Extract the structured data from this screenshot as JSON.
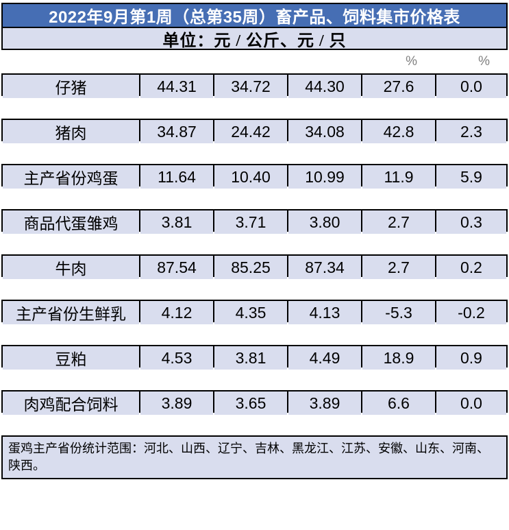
{
  "chart_data": {
    "type": "table",
    "title": "2022年9月第1周（总第35周）畜产品、饲料集市价格表",
    "unit_line": "单位：元 / 公斤、元 / 只",
    "column_headers": [
      "",
      "",
      "",
      "",
      "%",
      "%"
    ],
    "rows": [
      {
        "name": "仔猪",
        "values": [
          "44.31",
          "34.72",
          "44.30",
          "27.6",
          "0.0"
        ]
      },
      {
        "name": "猪肉",
        "values": [
          "34.87",
          "24.42",
          "34.08",
          "42.8",
          "2.3"
        ]
      },
      {
        "name": "主产省份鸡蛋",
        "values": [
          "11.64",
          "10.40",
          "10.99",
          "11.9",
          "5.9"
        ]
      },
      {
        "name": "商品代蛋雏鸡",
        "values": [
          "3.81",
          "3.71",
          "3.80",
          "2.7",
          "0.3"
        ]
      },
      {
        "name": "牛肉",
        "values": [
          "87.54",
          "85.25",
          "87.34",
          "2.7",
          "0.2"
        ]
      },
      {
        "name": "主产省份生鲜乳",
        "values": [
          "4.12",
          "4.35",
          "4.13",
          "-5.3",
          "-0.2"
        ]
      },
      {
        "name": "豆粕",
        "values": [
          "4.53",
          "3.81",
          "4.49",
          "18.9",
          "0.9"
        ]
      },
      {
        "name": "肉鸡配合饲料",
        "values": [
          "3.89",
          "3.65",
          "3.89",
          "6.6",
          "0.0"
        ]
      }
    ],
    "footnote": "蛋鸡主产省份统计范围：河北、山西、辽宁、吉林、黑龙江、江苏、安徽、山东、河南、陕西。"
  },
  "colors": {
    "title_bg": "#466eb4",
    "title_text": "#ffffff",
    "cell_bg": "#d9ddee",
    "pct_text": "#808080",
    "border": "#000000"
  }
}
